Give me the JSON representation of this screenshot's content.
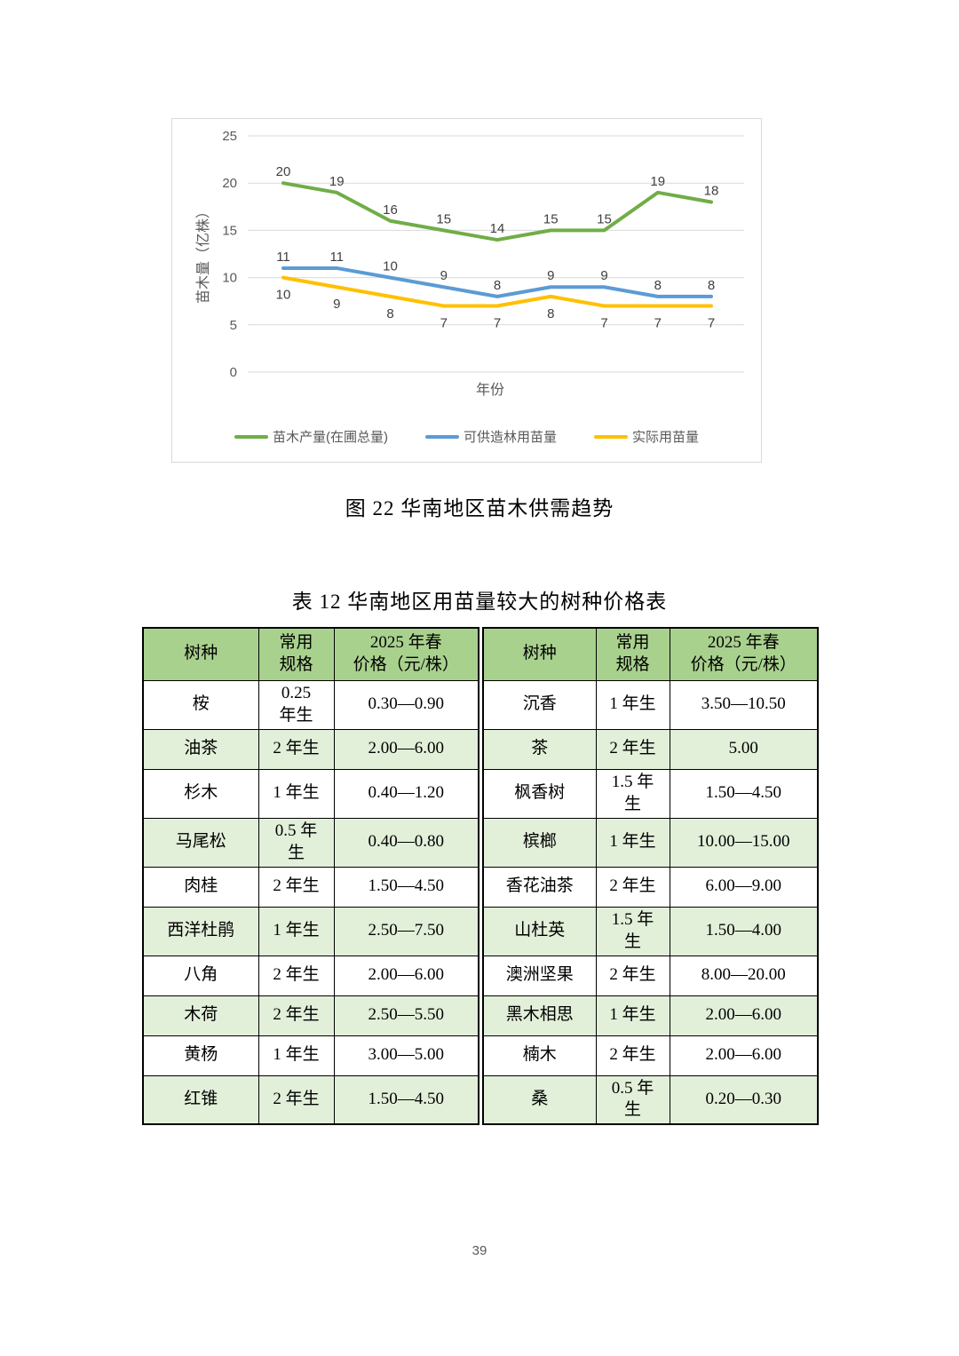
{
  "page": {
    "number": "39"
  },
  "figure_caption": "图 22 华南地区苗木供需趋势",
  "table_caption": "表 12 华南地区用苗量较大的树种价格表",
  "chart_data": {
    "type": "line",
    "title": "",
    "xlabel": "年份",
    "ylabel": "苗木量（亿株）",
    "x_points": 9,
    "x_tick_labels": [],
    "yticks": [
      0,
      5,
      10,
      15,
      20,
      25
    ],
    "ylim": [
      0,
      25
    ],
    "grid": "horizontal",
    "legend_position": "bottom",
    "colors": {
      "gridline": "#D9D9D9",
      "axis_text": "#595959",
      "data_label": "#404040"
    },
    "series": [
      {
        "name": "苗木产量(在圃总量)",
        "color": "#70AD47",
        "label_pos": "above",
        "values": [
          20,
          19,
          16,
          15,
          14,
          15,
          15,
          19,
          18
        ]
      },
      {
        "name": "可供造林用苗量",
        "color": "#5B9BD5",
        "label_pos": "above",
        "values": [
          11,
          11,
          10,
          9,
          8,
          9,
          9,
          8,
          8
        ]
      },
      {
        "name": "实际用苗量",
        "color": "#FFC000",
        "label_pos": "below",
        "values": [
          10,
          9,
          8,
          7,
          7,
          8,
          7,
          7,
          7
        ]
      }
    ]
  },
  "table": {
    "colors": {
      "header_bg": "#A9D18E",
      "stripe_bg": "#E2EFD9",
      "border": "#000000"
    },
    "headers": [
      "树种",
      "常用\n规格",
      "2025 年春\n价格（元/株）",
      "树种",
      "常用\n规格",
      "2025 年春\n价格（元/株）"
    ],
    "rows": [
      [
        "桉",
        "0.25\n年生",
        "0.30—0.90",
        "沉香",
        "1 年生",
        "3.50—10.50"
      ],
      [
        "油茶",
        "2 年生",
        "2.00—6.00",
        "茶",
        "2 年生",
        "5.00"
      ],
      [
        "杉木",
        "1 年生",
        "0.40—1.20",
        "枫香树",
        "1.5 年\n生",
        "1.50—4.50"
      ],
      [
        "马尾松",
        "0.5 年\n生",
        "0.40—0.80",
        "槟榔",
        "1 年生",
        "10.00—15.00"
      ],
      [
        "肉桂",
        "2 年生",
        "1.50—4.50",
        "香花油茶",
        "2 年生",
        "6.00—9.00"
      ],
      [
        "西洋杜鹃",
        "1 年生",
        "2.50—7.50",
        "山杜英",
        "1.5 年\n生",
        "1.50—4.00"
      ],
      [
        "八角",
        "2 年生",
        "2.00—6.00",
        "澳洲坚果",
        "2 年生",
        "8.00—20.00"
      ],
      [
        "木荷",
        "2 年生",
        "2.50—5.50",
        "黑木相思",
        "1 年生",
        "2.00—6.00"
      ],
      [
        "黄杨",
        "1 年生",
        "3.00—5.00",
        "楠木",
        "2 年生",
        "2.00—6.00"
      ],
      [
        "红锥",
        "2 年生",
        "1.50—4.50",
        "桑",
        "0.5 年\n生",
        "0.20—0.30"
      ]
    ]
  }
}
